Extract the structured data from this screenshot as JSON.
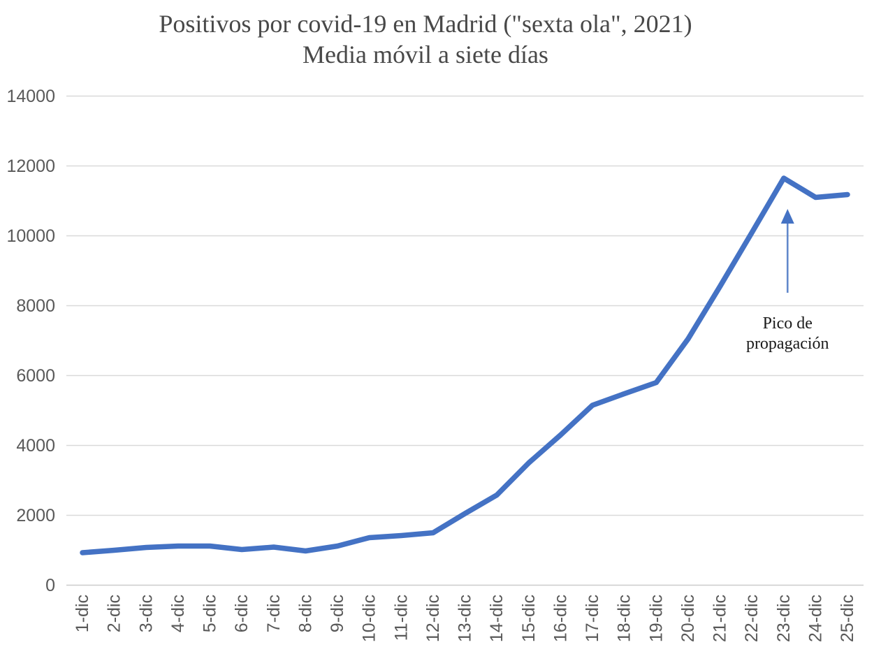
{
  "chart_data": {
    "type": "line",
    "title": "Positivos por covid-19 en Madrid (\"sexta ola\", 2021)",
    "subtitle": "Media móvil a siete días",
    "categories": [
      "1-dic",
      "2-dic",
      "3-dic",
      "4-dic",
      "5-dic",
      "6-dic",
      "7-dic",
      "8-dic",
      "9-dic",
      "10-dic",
      "11-dic",
      "12-dic",
      "13-dic",
      "14-dic",
      "15-dic",
      "16-dic",
      "17-dic",
      "18-dic",
      "19-dic",
      "20-dic",
      "21-dic",
      "22-dic",
      "23-dic",
      "24-dic",
      "25-dic"
    ],
    "values": [
      930,
      1000,
      1080,
      1120,
      1120,
      1020,
      1090,
      980,
      1120,
      1360,
      1420,
      1500,
      2050,
      2580,
      3500,
      4300,
      5150,
      5480,
      5800,
      7050,
      8550,
      10090,
      11650,
      11100,
      11180
    ],
    "ylim": [
      0,
      14000
    ],
    "y_ticks": [
      0,
      2000,
      4000,
      6000,
      8000,
      10000,
      12000,
      14000
    ],
    "y_tick_labels": [
      "0",
      "2000",
      "4000",
      "6000",
      "8000",
      "10000",
      "12000",
      "14000"
    ],
    "grid": true,
    "legend": "none",
    "annotation": {
      "line1": "Pico de",
      "line2": "propagación",
      "target_category": "23-dic",
      "target_value": 11650
    },
    "colors": {
      "line": "#4472C4",
      "arrow_shaft": "#6288CB",
      "arrow_head": "#4472C4",
      "gridline": "#D9D9D9",
      "axis_line": "#CCCCCC",
      "tick_label": "#595959",
      "title_text": "#484848",
      "annotation_text": "#1A1A1A",
      "background": "#FFFFFF"
    }
  }
}
